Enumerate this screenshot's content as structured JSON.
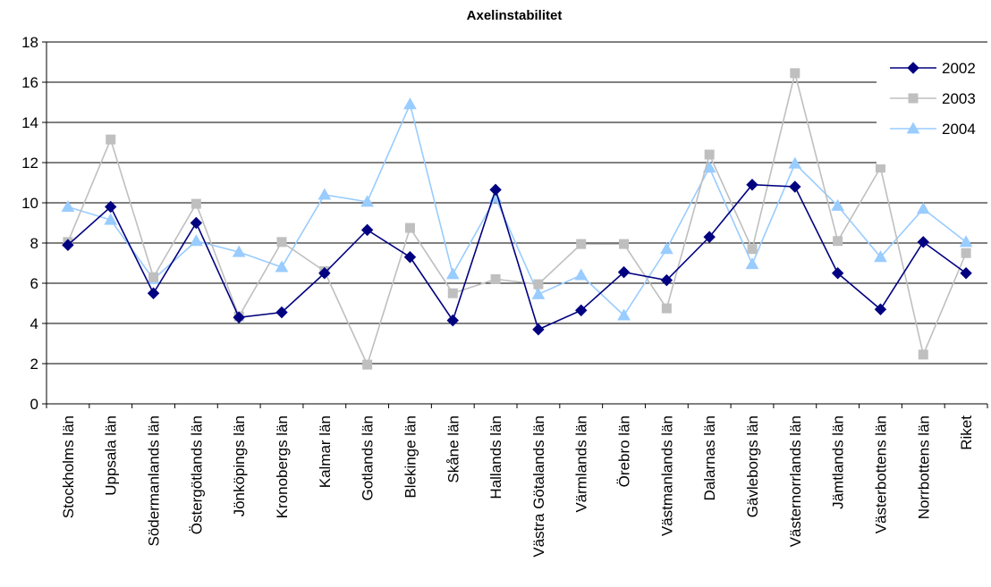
{
  "chart_data": {
    "type": "line",
    "title": "Axelinstabilitet",
    "xlabel": "",
    "ylabel": "",
    "ylim": [
      0,
      18
    ],
    "yticks": [
      0,
      2,
      4,
      6,
      8,
      10,
      12,
      14,
      16,
      18
    ],
    "grid": "horizontal",
    "legend_position": "top-right",
    "categories": [
      "Stockholms län",
      "Uppsala län",
      "Södermanlands län",
      "Östergötlands län",
      "Jönköpings län",
      "Kronobergs län",
      "Kalmar län",
      "Gotlands län",
      "Blekinge län",
      "Skåne län",
      "Hallands län",
      "Västra Götalands län",
      "Värmlands län",
      "Örebro län",
      "Västmanlands län",
      "Dalarnas län",
      "Gävleborgs län",
      "Västernorrlands län",
      "Jämtlands län",
      "Västerbottens län",
      "Norrbottens län",
      "Riket"
    ],
    "series": [
      {
        "name": "2002",
        "color": "#000080",
        "marker": "diamond",
        "values": [
          7.9,
          9.8,
          5.5,
          9.0,
          4.3,
          4.55,
          6.5,
          8.65,
          7.3,
          4.15,
          10.65,
          3.7,
          4.65,
          6.55,
          6.15,
          8.3,
          10.9,
          10.8,
          6.5,
          4.7,
          8.05,
          6.5
        ]
      },
      {
        "name": "2003",
        "color": "#bfbfbf",
        "marker": "square",
        "values": [
          8.05,
          13.15,
          6.3,
          9.95,
          4.35,
          8.05,
          6.6,
          1.95,
          8.75,
          5.5,
          6.2,
          5.95,
          7.95,
          7.95,
          4.75,
          12.4,
          7.7,
          16.45,
          8.1,
          11.75,
          2.45,
          7.5
        ]
      },
      {
        "name": "2004",
        "color": "#99ccff",
        "marker": "triangle",
        "values": [
          9.8,
          9.15,
          6.2,
          8.1,
          7.55,
          6.8,
          10.4,
          10.05,
          14.9,
          6.45,
          10.25,
          5.45,
          6.4,
          4.4,
          7.7,
          11.75,
          6.95,
          11.95,
          9.85,
          7.3,
          9.7,
          8.05
        ]
      }
    ]
  }
}
